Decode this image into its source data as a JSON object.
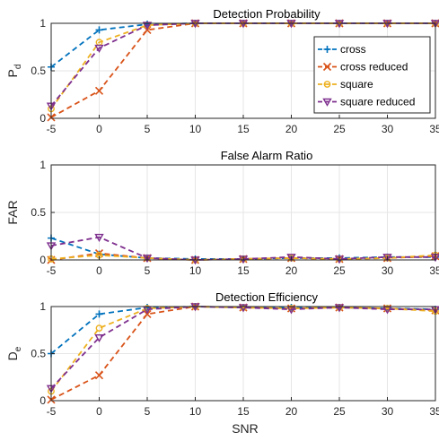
{
  "chart_data": [
    {
      "type": "line",
      "title": "Detection Probability",
      "ylabel": "P",
      "ylabel_sub": "d",
      "xlabel": "",
      "x": [
        -5,
        0,
        5,
        10,
        15,
        20,
        25,
        30,
        35
      ],
      "xlim": [
        -5,
        35
      ],
      "ylim": [
        0,
        1
      ],
      "yticks": [
        "0",
        "0.5",
        "1"
      ],
      "grid": true,
      "legend": "top-right",
      "series": [
        {
          "name": "cross",
          "values": [
            0.54,
            0.93,
            0.99,
            1.0,
            1.0,
            1.0,
            1.0,
            1.0,
            1.0
          ]
        },
        {
          "name": "cross reduced",
          "values": [
            0.01,
            0.29,
            0.93,
            1.0,
            1.0,
            1.0,
            1.0,
            1.0,
            1.0
          ]
        },
        {
          "name": "square",
          "values": [
            0.1,
            0.8,
            0.98,
            1.0,
            1.0,
            1.0,
            1.0,
            1.0,
            1.0
          ]
        },
        {
          "name": "square reduced",
          "values": [
            0.13,
            0.74,
            0.98,
            1.0,
            1.0,
            1.0,
            1.0,
            1.0,
            1.0
          ]
        }
      ]
    },
    {
      "type": "line",
      "title": "False Alarm Ratio",
      "ylabel": "FAR",
      "ylabel_sub": "",
      "xlabel": "",
      "x": [
        -5,
        0,
        5,
        10,
        15,
        20,
        25,
        30,
        35
      ],
      "xlim": [
        -5,
        35
      ],
      "ylim": [
        0,
        1
      ],
      "yticks": [
        "0",
        "0.5",
        "1"
      ],
      "grid": true,
      "series": [
        {
          "name": "cross",
          "values": [
            0.23,
            0.06,
            0.02,
            0.01,
            0.01,
            0.02,
            0.02,
            0.03,
            0.03
          ]
        },
        {
          "name": "cross reduced",
          "values": [
            0.0,
            0.07,
            0.02,
            0.0,
            0.01,
            0.02,
            0.01,
            0.02,
            0.04
          ]
        },
        {
          "name": "square",
          "values": [
            0.01,
            0.05,
            0.02,
            0.0,
            0.01,
            0.02,
            0.01,
            0.02,
            0.05
          ]
        },
        {
          "name": "square reduced",
          "values": [
            0.15,
            0.24,
            0.02,
            0.0,
            0.01,
            0.03,
            0.01,
            0.03,
            0.03
          ]
        }
      ]
    },
    {
      "type": "line",
      "title": "Detection Efficiency",
      "ylabel": "D",
      "ylabel_sub": "e",
      "xlabel": "SNR",
      "x": [
        -5,
        0,
        5,
        10,
        15,
        20,
        25,
        30,
        35
      ],
      "xlim": [
        -5,
        35
      ],
      "ylim": [
        0,
        1
      ],
      "yticks": [
        "0",
        "0.5",
        "1"
      ],
      "grid": true,
      "series": [
        {
          "name": "cross",
          "values": [
            0.5,
            0.92,
            0.99,
            1.0,
            0.99,
            0.99,
            0.99,
            0.98,
            0.97
          ]
        },
        {
          "name": "cross reduced",
          "values": [
            0.01,
            0.27,
            0.92,
            1.0,
            0.99,
            0.98,
            0.99,
            0.98,
            0.96
          ]
        },
        {
          "name": "square",
          "values": [
            0.1,
            0.77,
            0.98,
            1.0,
            0.99,
            0.98,
            0.99,
            0.98,
            0.95
          ]
        },
        {
          "name": "square reduced",
          "values": [
            0.13,
            0.67,
            0.97,
            1.0,
            0.99,
            0.97,
            0.99,
            0.97,
            0.97
          ]
        }
      ]
    }
  ],
  "styles": {
    "colors": [
      "#0072BD",
      "#D95319",
      "#EDB120",
      "#7E2F8E"
    ],
    "markers": [
      "plus",
      "x",
      "circle",
      "triangle-down"
    ],
    "grid_color": "#e6e6e6",
    "axis_color": "#262626"
  }
}
